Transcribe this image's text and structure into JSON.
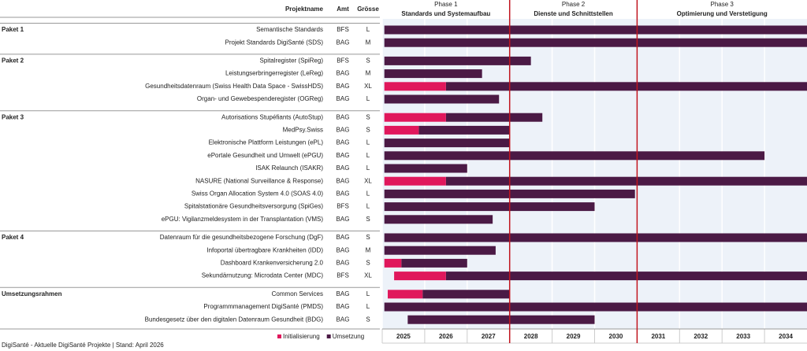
{
  "chart_data": {
    "type": "gantt",
    "columns": [
      "Projektname",
      "Amt",
      "Grösse"
    ],
    "xlim": [
      2025,
      2035
    ],
    "years": [
      2025,
      2026,
      2027,
      2028,
      2029,
      2030,
      2031,
      2032,
      2033,
      2034
    ],
    "phases": [
      {
        "label": "Phase 1",
        "title": "Standards und Systemaufbau",
        "start": 2025,
        "end": 2028
      },
      {
        "label": "Phase 2",
        "title": "Dienste und Schnittstellen",
        "start": 2028,
        "end": 2031
      },
      {
        "label": "Phase 3",
        "title": "Optimierung und Verstetigung",
        "start": 2031,
        "end": 2035
      }
    ],
    "legend": [
      {
        "name": "Initialisierung",
        "color": "#e0185c"
      },
      {
        "name": "Umsetzung",
        "color": "#4b1a45"
      }
    ],
    "groups": [
      {
        "name": "Paket 1",
        "tasks": [
          {
            "name": "Semantische Standards",
            "amt": "BFS",
            "size": "L",
            "impl": [
              2025.05,
              2035
            ]
          },
          {
            "name": "Projekt Standards DigiSanté (SDS)",
            "amt": "BAG",
            "size": "M",
            "impl": [
              2025.05,
              2035
            ]
          }
        ]
      },
      {
        "name": "Paket 2",
        "tasks": [
          {
            "name": "Spitalregister (SpiReg)",
            "amt": "BFS",
            "size": "S",
            "impl": [
              2025.05,
              2028.5
            ]
          },
          {
            "name": "Leistungserbringerregister (LeReg)",
            "amt": "BAG",
            "size": "M",
            "impl": [
              2025.05,
              2027.35
            ]
          },
          {
            "name": "Gesundheitsdatenraum (Swiss Health Data Space - SwissHDS)",
            "amt": "BAG",
            "size": "XL",
            "init": [
              2025.05,
              2026.5
            ],
            "impl": [
              2026.5,
              2035
            ]
          },
          {
            "name": "Organ- und Gewebespenderegister (OGReg)",
            "amt": "BAG",
            "size": "L",
            "impl": [
              2025.05,
              2027.75
            ]
          }
        ]
      },
      {
        "name": "Paket 3",
        "tasks": [
          {
            "name": "Autorisations Stupéfiants (AutoStup)",
            "amt": "BAG",
            "size": "S",
            "init": [
              2025.05,
              2026.5
            ],
            "impl": [
              2026.5,
              2028.77
            ]
          },
          {
            "name": "MedPsy.Swiss",
            "amt": "BAG",
            "size": "S",
            "init": [
              2025.05,
              2025.86
            ],
            "impl": [
              2025.86,
              2028
            ]
          },
          {
            "name": "Elektronische Plattform Leistungen (ePL)",
            "amt": "BAG",
            "size": "L",
            "impl": [
              2025.05,
              2028
            ]
          },
          {
            "name": "ePortale Gesundheit und Umwelt (ePGU)",
            "amt": "BAG",
            "size": "L",
            "impl": [
              2025.05,
              2034
            ]
          },
          {
            "name": "ISAK Relaunch (ISAKR)",
            "amt": "BAG",
            "size": "L",
            "impl": [
              2025.05,
              2027
            ]
          },
          {
            "name": "NASURE (National Surveillance & Response)",
            "amt": "BAG",
            "size": "XL",
            "init": [
              2025.05,
              2026.5
            ],
            "impl": [
              2026.5,
              2035
            ]
          },
          {
            "name": "Swiss Organ Allocation System 4.0 (SOAS 4.0)",
            "amt": "BAG",
            "size": "L",
            "impl": [
              2025.05,
              2030.95
            ]
          },
          {
            "name": "Spitalstationäre Gesundheitsversorgung (SpiGes)",
            "amt": "BFS",
            "size": "L",
            "impl": [
              2025.05,
              2030
            ]
          },
          {
            "name": "ePGU: Vigilanzmeldesystem in der Transplantation (VMS)",
            "amt": "BAG",
            "size": "S",
            "impl": [
              2025.05,
              2027.6
            ]
          }
        ]
      },
      {
        "name": "Paket 4",
        "tasks": [
          {
            "name": "Datenraum für die gesundheitsbezogene Forschung (DgF)",
            "amt": "BAG",
            "size": "S",
            "impl": [
              2025.05,
              2035
            ]
          },
          {
            "name": "Infoportal übertragbare Krankheiten (IDD)",
            "amt": "BAG",
            "size": "M",
            "impl": [
              2025.05,
              2027.67
            ]
          },
          {
            "name": "Dashboard Krankenversicherung 2.0",
            "amt": "BAG",
            "size": "S",
            "init": [
              2025.05,
              2025.45
            ],
            "impl": [
              2025.45,
              2027
            ]
          },
          {
            "name": "Sekundärnutzung: Microdata Center (MDC)",
            "amt": "BFS",
            "size": "XL",
            "init": [
              2025.28,
              2026.5
            ],
            "impl": [
              2026.5,
              2035
            ]
          }
        ]
      },
      {
        "name": "Umsetzungsrahmen",
        "tasks": [
          {
            "name": "Common Services",
            "amt": "BAG",
            "size": "L",
            "init": [
              2025.13,
              2025.95
            ],
            "impl": [
              2025.95,
              2028
            ]
          },
          {
            "name": "Programmmanagement DigiSanté (PMDS)",
            "amt": "BAG",
            "size": "L",
            "impl": [
              2025.05,
              2035
            ]
          },
          {
            "name": "Bundesgesetz über den digitalen Datenraum Gesundheit (BDG)",
            "amt": "BAG",
            "size": "S",
            "impl": [
              2025.6,
              2030
            ]
          }
        ]
      }
    ],
    "footer": "DigiSanté - Aktuelle DigiSanté Projekte | Stand: April 2026"
  }
}
